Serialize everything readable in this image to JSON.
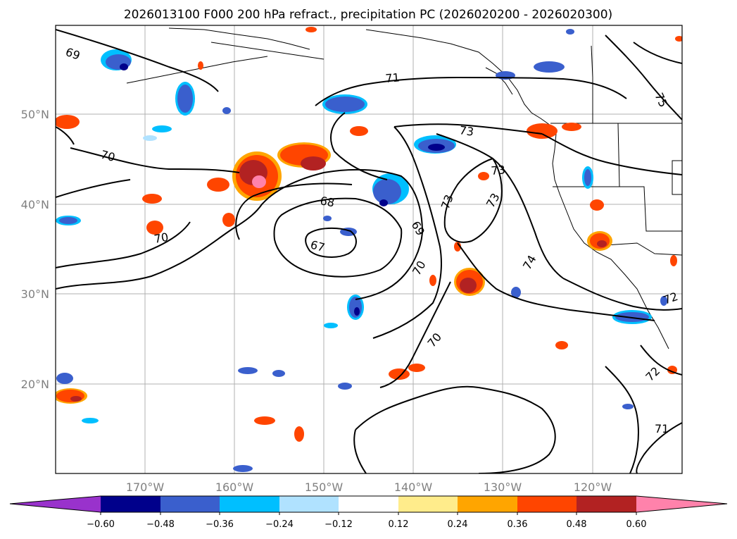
{
  "title": "2026013100 F000 200 hPa refract., precipitation PC (2026020200 - 2026020300)",
  "map": {
    "lat_labels": [
      "50°N",
      "40°N",
      "30°N",
      "20°N"
    ],
    "lon_labels": [
      "170°W",
      "160°W",
      "150°W",
      "140°W",
      "130°W",
      "120°W"
    ],
    "gridlines": true,
    "contour_labels": {
      "c69_nw": "69",
      "c71_n": "71",
      "c75_ne": "75",
      "c70_w": "70",
      "c73_a": "73",
      "c73_b": "73",
      "c68": "68",
      "c67": "67",
      "c73_c": "73",
      "c73_d": "73",
      "c69_c": "69",
      "c70_c": "70",
      "c70_sw": "70",
      "c74": "74",
      "c70_s": "70",
      "c72_e": "72",
      "c72_se": "72",
      "c71_se": "71"
    }
  },
  "colorbar": {
    "ticks": [
      "−0.60",
      "−0.48",
      "−0.36",
      "−0.24",
      "−0.12",
      "0.12",
      "0.24",
      "0.36",
      "0.48",
      "0.60"
    ],
    "colors": [
      "#9932cc",
      "#00008b",
      "#3a5fcd",
      "#00bfff",
      "#b0e2ff",
      "#ffffff",
      "#ffec8b",
      "#ffa500",
      "#ff4500",
      "#b22222",
      "#ff82ab"
    ]
  }
}
